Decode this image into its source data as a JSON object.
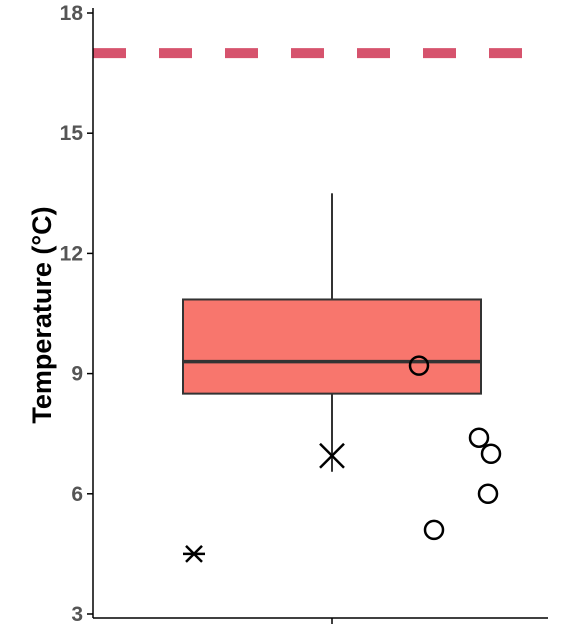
{
  "chart_data": {
    "type": "box",
    "title": "",
    "xlabel": "",
    "ylabel": "Temperature (°C)",
    "ylim": [
      3,
      18
    ],
    "yticks": [
      3,
      6,
      9,
      12,
      15,
      18
    ],
    "grid": false,
    "legend": "none",
    "colors": {
      "box_fill": "#F8766D",
      "box_stroke": "#333333",
      "reference_line": "#D6536D",
      "axis": "#000000",
      "tick_label": "#555555",
      "points": "#000000"
    },
    "box": {
      "q1": 8.5,
      "median": 9.3,
      "q3": 10.85,
      "whisker_low": 6.55,
      "whisker_high": 13.5
    },
    "reference_line": {
      "y": 17,
      "style": "dashed"
    },
    "points": [
      {
        "x": -0.46,
        "y": 4.5,
        "shape": "asterisk"
      },
      {
        "x": 0.0,
        "y": 6.95,
        "shape": "cross"
      },
      {
        "x": 0.29,
        "y": 9.2,
        "shape": "circle"
      },
      {
        "x": 0.34,
        "y": 5.1,
        "shape": "circle"
      },
      {
        "x": 0.49,
        "y": 7.4,
        "shape": "circle"
      },
      {
        "x": 0.53,
        "y": 7.0,
        "shape": "circle"
      },
      {
        "x": 0.52,
        "y": 6.0,
        "shape": "circle"
      }
    ]
  }
}
